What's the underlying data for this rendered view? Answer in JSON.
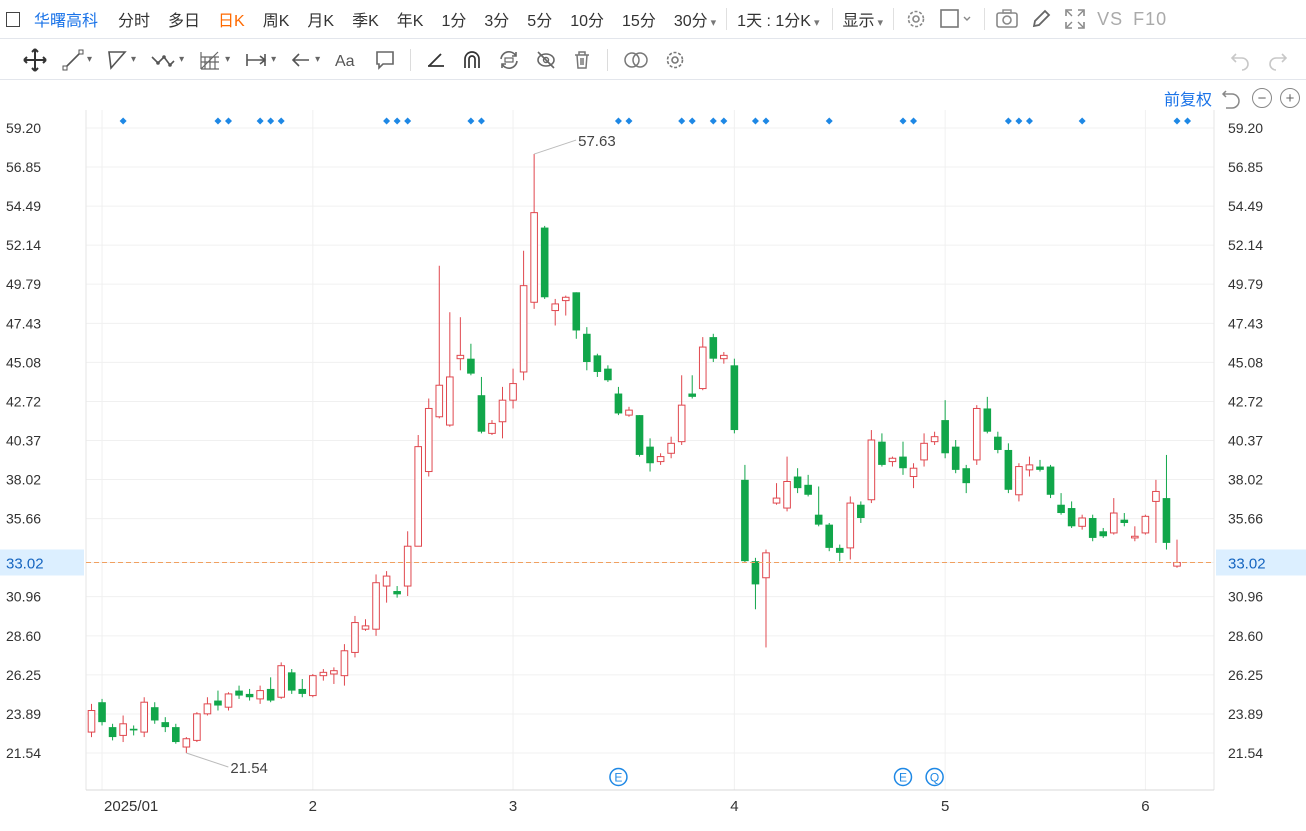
{
  "topbar": {
    "symbol": "华曙高科",
    "periods": [
      "分时",
      "多日",
      "日K",
      "周K",
      "月K",
      "季K",
      "年K",
      "1分",
      "3分",
      "5分",
      "10分",
      "15分",
      "30分"
    ],
    "active_period": "日K",
    "combo_label": "1天 : 1分K",
    "display_label": "显示",
    "vs_label": "VS",
    "f10_label": "F10"
  },
  "chart_controls": {
    "adjust_label": "前复权"
  },
  "chart_data": {
    "type": "candlestick",
    "y_ticks": [
      "59.20",
      "56.85",
      "54.49",
      "52.14",
      "49.79",
      "47.43",
      "45.08",
      "42.72",
      "40.37",
      "38.02",
      "35.66",
      "33.02",
      "30.96",
      "28.60",
      "26.25",
      "23.89",
      "21.54"
    ],
    "ylim": [
      21.54,
      59.2
    ],
    "x_labels": [
      "2025/01",
      "2",
      "3",
      "4",
      "5",
      "6"
    ],
    "current_price": 33.02,
    "high_label": "57.63",
    "low_label": "21.54",
    "up_color": "#e0474e",
    "down_color": "#11a64a",
    "grid": true,
    "candles": [
      {
        "o": 22.8,
        "h": 24.5,
        "l": 22.5,
        "c": 24.1
      },
      {
        "o": 24.6,
        "h": 24.8,
        "l": 23.2,
        "c": 23.4
      },
      {
        "o": 23.1,
        "h": 23.3,
        "l": 22.3,
        "c": 22.5
      },
      {
        "o": 22.6,
        "h": 23.8,
        "l": 22.2,
        "c": 23.3
      },
      {
        "o": 23.0,
        "h": 23.2,
        "l": 22.6,
        "c": 22.9
      },
      {
        "o": 22.8,
        "h": 24.9,
        "l": 22.5,
        "c": 24.6
      },
      {
        "o": 24.3,
        "h": 24.6,
        "l": 23.3,
        "c": 23.5
      },
      {
        "o": 23.4,
        "h": 23.7,
        "l": 22.8,
        "c": 23.1
      },
      {
        "o": 23.1,
        "h": 23.3,
        "l": 22.1,
        "c": 22.2
      },
      {
        "o": 21.9,
        "h": 22.5,
        "l": 21.54,
        "c": 22.4
      },
      {
        "o": 22.3,
        "h": 24.0,
        "l": 22.2,
        "c": 23.9
      },
      {
        "o": 23.9,
        "h": 24.9,
        "l": 23.8,
        "c": 24.5
      },
      {
        "o": 24.7,
        "h": 25.3,
        "l": 24.1,
        "c": 24.4
      },
      {
        "o": 24.3,
        "h": 25.2,
        "l": 24.1,
        "c": 25.1
      },
      {
        "o": 25.3,
        "h": 25.6,
        "l": 24.8,
        "c": 25.0
      },
      {
        "o": 25.1,
        "h": 25.4,
        "l": 24.7,
        "c": 24.9
      },
      {
        "o": 24.8,
        "h": 25.6,
        "l": 24.5,
        "c": 25.3
      },
      {
        "o": 25.4,
        "h": 26.1,
        "l": 24.6,
        "c": 24.7
      },
      {
        "o": 24.9,
        "h": 27.0,
        "l": 24.8,
        "c": 26.8
      },
      {
        "o": 26.4,
        "h": 26.6,
        "l": 25.1,
        "c": 25.3
      },
      {
        "o": 25.4,
        "h": 26.0,
        "l": 24.9,
        "c": 25.1
      },
      {
        "o": 25.0,
        "h": 26.3,
        "l": 24.9,
        "c": 26.2
      },
      {
        "o": 26.2,
        "h": 26.6,
        "l": 25.9,
        "c": 26.4
      },
      {
        "o": 26.3,
        "h": 26.7,
        "l": 25.7,
        "c": 26.5
      },
      {
        "o": 26.2,
        "h": 28.1,
        "l": 25.6,
        "c": 27.7
      },
      {
        "o": 27.6,
        "h": 29.8,
        "l": 27.3,
        "c": 29.4
      },
      {
        "o": 29.0,
        "h": 29.6,
        "l": 28.9,
        "c": 29.2
      },
      {
        "o": 29.0,
        "h": 32.3,
        "l": 28.6,
        "c": 31.8
      },
      {
        "o": 31.6,
        "h": 32.5,
        "l": 30.6,
        "c": 32.2
      },
      {
        "o": 31.3,
        "h": 31.6,
        "l": 30.9,
        "c": 31.1
      },
      {
        "o": 31.6,
        "h": 34.9,
        "l": 31.0,
        "c": 34.0
      },
      {
        "o": 34.0,
        "h": 40.7,
        "l": 34.0,
        "c": 40.0
      },
      {
        "o": 38.5,
        "h": 42.9,
        "l": 38.2,
        "c": 42.3
      },
      {
        "o": 41.8,
        "h": 50.9,
        "l": 41.7,
        "c": 43.7
      },
      {
        "o": 41.3,
        "h": 48.1,
        "l": 41.2,
        "c": 44.2
      },
      {
        "o": 45.3,
        "h": 47.8,
        "l": 44.6,
        "c": 45.5
      },
      {
        "o": 45.3,
        "h": 46.2,
        "l": 44.3,
        "c": 44.4
      },
      {
        "o": 43.1,
        "h": 44.2,
        "l": 40.8,
        "c": 40.9
      },
      {
        "o": 40.8,
        "h": 41.6,
        "l": 40.7,
        "c": 41.4
      },
      {
        "o": 41.5,
        "h": 43.6,
        "l": 40.5,
        "c": 42.8
      },
      {
        "o": 42.8,
        "h": 44.7,
        "l": 42.3,
        "c": 43.8
      },
      {
        "o": 44.5,
        "h": 51.8,
        "l": 44.0,
        "c": 49.7
      },
      {
        "o": 48.7,
        "h": 57.63,
        "l": 48.3,
        "c": 54.1
      },
      {
        "o": 53.2,
        "h": 53.3,
        "l": 48.9,
        "c": 49.0
      },
      {
        "o": 48.2,
        "h": 48.9,
        "l": 47.3,
        "c": 48.6
      },
      {
        "o": 48.8,
        "h": 49.1,
        "l": 47.9,
        "c": 49.0
      },
      {
        "o": 49.3,
        "h": 49.3,
        "l": 46.5,
        "c": 47.0
      },
      {
        "o": 46.8,
        "h": 47.2,
        "l": 44.6,
        "c": 45.1
      },
      {
        "o": 45.5,
        "h": 45.6,
        "l": 44.2,
        "c": 44.5
      },
      {
        "o": 44.7,
        "h": 44.9,
        "l": 43.9,
        "c": 44.0
      },
      {
        "o": 43.2,
        "h": 43.6,
        "l": 41.9,
        "c": 42.0
      },
      {
        "o": 41.9,
        "h": 42.4,
        "l": 41.8,
        "c": 42.2
      },
      {
        "o": 41.9,
        "h": 41.9,
        "l": 39.4,
        "c": 39.5
      },
      {
        "o": 40.0,
        "h": 40.5,
        "l": 38.5,
        "c": 39.0
      },
      {
        "o": 39.1,
        "h": 39.6,
        "l": 38.9,
        "c": 39.4
      },
      {
        "o": 39.6,
        "h": 40.6,
        "l": 39.3,
        "c": 40.2
      },
      {
        "o": 40.3,
        "h": 44.3,
        "l": 40.1,
        "c": 42.5
      },
      {
        "o": 43.2,
        "h": 44.3,
        "l": 42.9,
        "c": 43.0
      },
      {
        "o": 43.5,
        "h": 46.6,
        "l": 43.4,
        "c": 46.0
      },
      {
        "o": 46.6,
        "h": 46.8,
        "l": 45.1,
        "c": 45.3
      },
      {
        "o": 45.3,
        "h": 45.7,
        "l": 45.0,
        "c": 45.5
      },
      {
        "o": 44.9,
        "h": 45.3,
        "l": 40.8,
        "c": 41.0
      },
      {
        "o": 38.0,
        "h": 38.9,
        "l": 33.0,
        "c": 33.1
      },
      {
        "o": 33.1,
        "h": 33.3,
        "l": 30.2,
        "c": 31.7
      },
      {
        "o": 32.1,
        "h": 33.8,
        "l": 27.9,
        "c": 33.6
      },
      {
        "o": 36.6,
        "h": 37.8,
        "l": 36.5,
        "c": 36.9
      },
      {
        "o": 36.3,
        "h": 39.4,
        "l": 36.1,
        "c": 37.9
      },
      {
        "o": 38.2,
        "h": 38.7,
        "l": 37.2,
        "c": 37.5
      },
      {
        "o": 37.7,
        "h": 38.3,
        "l": 37.0,
        "c": 37.1
      },
      {
        "o": 35.9,
        "h": 37.6,
        "l": 35.2,
        "c": 35.3
      },
      {
        "o": 35.3,
        "h": 35.4,
        "l": 33.7,
        "c": 33.9
      },
      {
        "o": 33.9,
        "h": 34.1,
        "l": 33.1,
        "c": 33.6
      },
      {
        "o": 33.9,
        "h": 37.0,
        "l": 33.2,
        "c": 36.6
      },
      {
        "o": 36.5,
        "h": 36.7,
        "l": 35.4,
        "c": 35.7
      },
      {
        "o": 36.8,
        "h": 41.0,
        "l": 36.6,
        "c": 40.4
      },
      {
        "o": 40.3,
        "h": 40.8,
        "l": 38.8,
        "c": 38.9
      },
      {
        "o": 39.1,
        "h": 39.4,
        "l": 38.8,
        "c": 39.3
      },
      {
        "o": 39.4,
        "h": 40.3,
        "l": 38.3,
        "c": 38.7
      },
      {
        "o": 38.2,
        "h": 39.0,
        "l": 37.5,
        "c": 38.7
      },
      {
        "o": 39.2,
        "h": 40.8,
        "l": 38.8,
        "c": 40.2
      },
      {
        "o": 40.3,
        "h": 40.9,
        "l": 40.1,
        "c": 40.6
      },
      {
        "o": 41.6,
        "h": 42.8,
        "l": 39.3,
        "c": 39.6
      },
      {
        "o": 40.0,
        "h": 40.4,
        "l": 38.4,
        "c": 38.6
      },
      {
        "o": 38.7,
        "h": 38.9,
        "l": 37.2,
        "c": 37.8
      },
      {
        "o": 39.2,
        "h": 42.5,
        "l": 38.9,
        "c": 42.3
      },
      {
        "o": 42.3,
        "h": 43.0,
        "l": 40.8,
        "c": 40.9
      },
      {
        "o": 40.6,
        "h": 40.9,
        "l": 39.6,
        "c": 39.8
      },
      {
        "o": 39.8,
        "h": 40.2,
        "l": 37.2,
        "c": 37.4
      },
      {
        "o": 37.1,
        "h": 39.0,
        "l": 36.7,
        "c": 38.8
      },
      {
        "o": 38.6,
        "h": 39.4,
        "l": 38.2,
        "c": 38.9
      },
      {
        "o": 38.8,
        "h": 39.2,
        "l": 38.5,
        "c": 38.6
      },
      {
        "o": 38.8,
        "h": 38.9,
        "l": 36.9,
        "c": 37.1
      },
      {
        "o": 36.5,
        "h": 37.2,
        "l": 35.9,
        "c": 36.0
      },
      {
        "o": 36.3,
        "h": 36.7,
        "l": 35.1,
        "c": 35.2
      },
      {
        "o": 35.2,
        "h": 35.9,
        "l": 35.0,
        "c": 35.7
      },
      {
        "o": 35.7,
        "h": 35.9,
        "l": 34.3,
        "c": 34.5
      },
      {
        "o": 34.9,
        "h": 35.1,
        "l": 34.5,
        "c": 34.6
      },
      {
        "o": 34.8,
        "h": 36.9,
        "l": 34.7,
        "c": 36.0
      },
      {
        "o": 35.6,
        "h": 36.0,
        "l": 35.2,
        "c": 35.4
      },
      {
        "o": 34.5,
        "h": 35.2,
        "l": 34.3,
        "c": 34.6
      },
      {
        "o": 34.8,
        "h": 35.9,
        "l": 34.7,
        "c": 35.8
      },
      {
        "o": 36.7,
        "h": 38.0,
        "l": 34.2,
        "c": 37.3
      },
      {
        "o": 36.9,
        "h": 39.5,
        "l": 33.8,
        "c": 34.2
      },
      {
        "o": 32.8,
        "h": 34.4,
        "l": 32.7,
        "c": 33.02
      }
    ]
  }
}
